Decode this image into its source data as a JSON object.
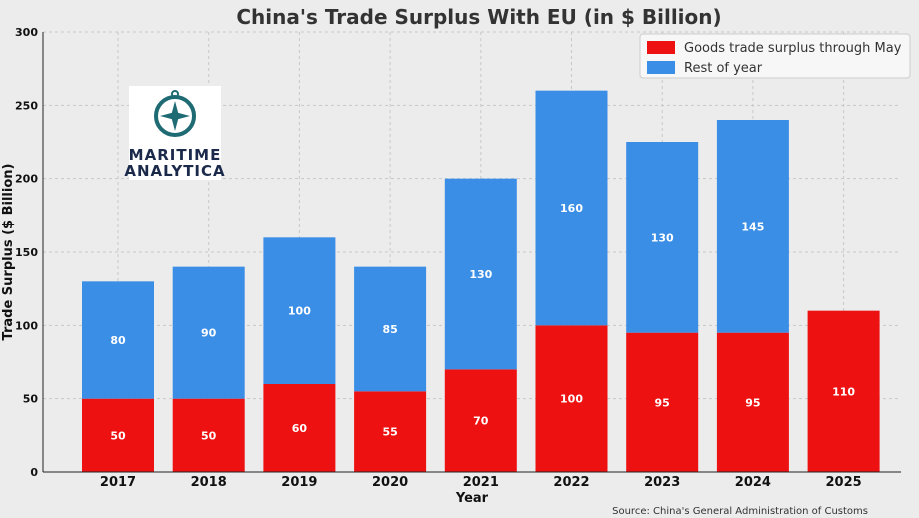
{
  "chart_data": {
    "type": "bar",
    "stacked": true,
    "title": "China's Trade Surplus With EU (in $ Billion)",
    "xlabel": "Year",
    "ylabel": "Trade Surplus ($ Billion)",
    "ylim": [
      0,
      300
    ],
    "yticks": [
      0,
      50,
      100,
      150,
      200,
      250,
      300
    ],
    "categories": [
      "2017",
      "2018",
      "2019",
      "2020",
      "2021",
      "2022",
      "2023",
      "2024",
      "2025"
    ],
    "series": [
      {
        "name": "Goods trade surplus through May",
        "color": "#ee1111",
        "values": [
          50,
          50,
          60,
          55,
          70,
          100,
          95,
          95,
          110
        ]
      },
      {
        "name": "Rest of year",
        "color": "#3b8ee6",
        "values": [
          80,
          90,
          100,
          85,
          130,
          160,
          130,
          145,
          null
        ]
      }
    ],
    "grid": true,
    "legend_position": "top-right",
    "source": "Source: China's General Administration of Customs"
  },
  "logo": {
    "line1": "MARITIME",
    "line2": "ANALYTICA",
    "icon": "compass-icon"
  }
}
